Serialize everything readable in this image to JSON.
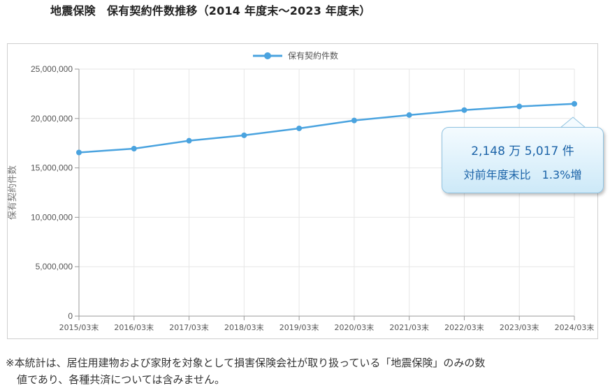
{
  "title": "地震保険　保有契約件数推移（2014 年度末～2023 年度末）",
  "chart_data": {
    "type": "line",
    "categories": [
      "2015/03末",
      "2016/03末",
      "2017/03末",
      "2018/03末",
      "2019/03末",
      "2020/03末",
      "2021/03末",
      "2022/03末",
      "2023/03末",
      "2024/03末"
    ],
    "series": [
      {
        "name": "保有契約件数",
        "values": [
          16560000,
          16950000,
          17750000,
          18300000,
          19000000,
          19800000,
          20350000,
          20850000,
          21220000,
          21485017
        ]
      }
    ],
    "ylabel": "保有契約件数",
    "xlabel": "",
    "ylim": [
      0,
      25000000
    ],
    "yticks": [
      0,
      5000000,
      10000000,
      15000000,
      20000000,
      25000000
    ],
    "ytick_labels": [
      "0",
      "5,000,000",
      "10,000,000",
      "15,000,000",
      "20,000,000",
      "25,000,000"
    ],
    "grid": true,
    "legend": "top-center",
    "line_color": "#4aa3df",
    "annotation": {
      "line1": "2,148 万 5,017 件",
      "line2": "対前年度末比　1.3%増"
    }
  },
  "footnote": {
    "line1": "※本統計は、居住用建物および家財を対象として損害保険会社が取り扱っている「地震保険」のみの数",
    "line2": "値であり、各種共済については含みません。"
  }
}
